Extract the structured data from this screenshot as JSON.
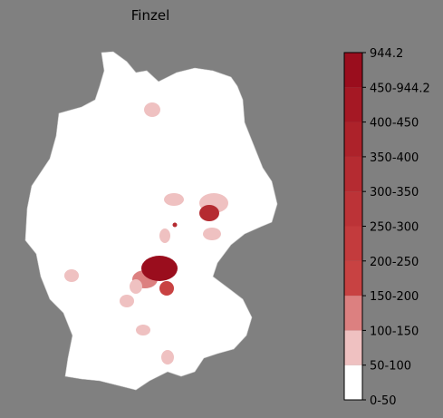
{
  "title": "Finzel",
  "colorbar": {
    "labels": [
      "0-50",
      "50-100",
      "100-150",
      "150-200",
      "200-250",
      "250-300",
      "300-350",
      "350-400",
      "400-450",
      "450-944.2",
      "944.2"
    ],
    "colors": [
      "#ffffff",
      "#efc1c1",
      "#dc8080",
      "#c84242",
      "#c33b3d",
      "#bc3337",
      "#b52b31",
      "#ad222a",
      "#a51824",
      "#9a0d1d"
    ]
  }
}
